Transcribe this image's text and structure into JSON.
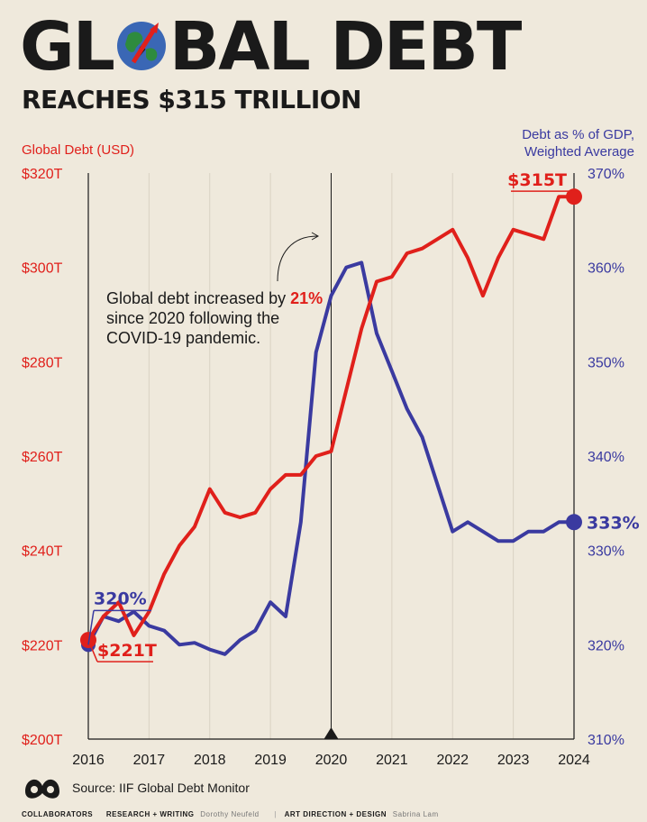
{
  "header": {
    "title_part1": "GL",
    "title_part2": "BAL DEBT",
    "subtitle": "REACHES $315 TRILLION"
  },
  "axis_labels": {
    "left": "Global Debt (USD)",
    "right_line1": "Debt as % of GDP,",
    "right_line2": "Weighted Average"
  },
  "annotation": {
    "pre": "Global debt increased by ",
    "highlight": "21%",
    "post": " since 2020 following the COVID-19 pandemic."
  },
  "callouts": {
    "debt_start": "$221T",
    "debt_end": "$315T",
    "pct_start": "320%",
    "pct_end": "333%"
  },
  "source": "Source: IIF Global Debt Monitor",
  "footer": {
    "collaborators": "COLLABORATORS",
    "research_label": "RESEARCH + WRITING",
    "research_name": "Dorothy Neufeld",
    "art_label": "ART DIRECTION + DESIGN",
    "art_name": "Sabrina Lam"
  },
  "colors": {
    "debt": "#e0201b",
    "pct": "#3a3aa0",
    "background": "#efe9dc",
    "text": "#1a1a1a"
  },
  "chart_data": {
    "type": "line",
    "title": "Global Debt Reaches $315 Trillion",
    "xlabel": "",
    "x_ticks": [
      "2016",
      "2017",
      "2018",
      "2019",
      "2020",
      "2021",
      "2022",
      "2023",
      "2024"
    ],
    "xlim": [
      2016,
      2024
    ],
    "left_axis": {
      "label": "Global Debt (USD)",
      "ylim": [
        200,
        320
      ],
      "ticks": [
        200,
        220,
        240,
        260,
        280,
        300,
        320
      ],
      "tick_labels": [
        "$200T",
        "$220T",
        "$240T",
        "$260T",
        "$280T",
        "$300T",
        "$320T"
      ]
    },
    "right_axis": {
      "label": "Debt as % of GDP, Weighted Average",
      "ylim": [
        310,
        370
      ],
      "ticks": [
        310,
        320,
        330,
        340,
        350,
        360,
        370
      ],
      "tick_labels": [
        "310%",
        "320%",
        "330%",
        "340%",
        "350%",
        "360%",
        "370%"
      ]
    },
    "series": [
      {
        "name": "Global Debt (USD, trillions)",
        "axis": "left",
        "x": [
          2016,
          2016.25,
          2016.5,
          2016.75,
          2017,
          2017.25,
          2017.5,
          2017.75,
          2018,
          2018.25,
          2018.5,
          2018.75,
          2019,
          2019.25,
          2019.5,
          2019.75,
          2020,
          2020.25,
          2020.5,
          2020.75,
          2021,
          2021.25,
          2021.5,
          2021.75,
          2022,
          2022.25,
          2022.5,
          2022.75,
          2023,
          2023.25,
          2023.5,
          2023.75,
          2024
        ],
        "values": [
          221,
          226,
          229,
          222,
          227,
          235,
          241,
          245,
          253,
          248,
          247,
          248,
          253,
          256,
          256,
          260,
          261,
          274,
          287,
          297,
          298,
          303,
          304,
          306,
          308,
          302,
          294,
          302,
          308,
          307,
          306,
          315,
          315
        ]
      },
      {
        "name": "Debt as % of GDP (weighted average)",
        "axis": "right",
        "x": [
          2016,
          2016.25,
          2016.5,
          2016.75,
          2017,
          2017.25,
          2017.5,
          2017.75,
          2018,
          2018.25,
          2018.5,
          2018.75,
          2019,
          2019.25,
          2019.5,
          2019.75,
          2020,
          2020.25,
          2020.5,
          2020.75,
          2021,
          2021.25,
          2021.5,
          2021.75,
          2022,
          2022.25,
          2022.5,
          2022.75,
          2023,
          2023.25,
          2023.5,
          2023.75,
          2024
        ],
        "values": [
          320,
          323,
          322.5,
          323.5,
          322,
          321.5,
          320,
          320.2,
          319.5,
          319,
          320.5,
          321.5,
          324.5,
          323,
          333,
          351,
          357,
          360,
          360.5,
          353,
          349,
          345,
          342,
          337,
          332,
          333,
          332,
          331,
          331,
          332,
          332,
          333,
          333
        ]
      }
    ],
    "annotations": [
      {
        "x": 2020,
        "text": "Global debt increased by 21% since 2020 following the COVID-19 pandemic."
      }
    ]
  }
}
